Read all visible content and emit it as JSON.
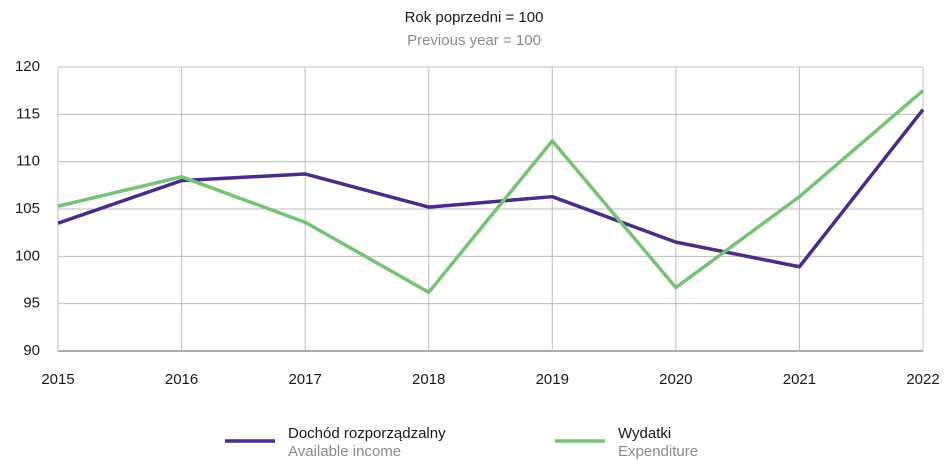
{
  "chart_data": {
    "type": "line",
    "title": "Rok poprzedni = 100",
    "subtitle": "Previous year = 100",
    "x": [
      2015,
      2016,
      2017,
      2018,
      2019,
      2020,
      2021,
      2022
    ],
    "xlim": [
      2015,
      2022
    ],
    "xticks": [
      2015,
      2016,
      2017,
      2018,
      2019,
      2020,
      2021,
      2022
    ],
    "ylim": [
      90,
      120
    ],
    "yticks": [
      90,
      95,
      100,
      105,
      110,
      115,
      120
    ],
    "grid": true,
    "legend": "bottom",
    "series": [
      {
        "name": "Dochód rozporządzalny",
        "name_en": "Available income",
        "color": "#4b2b8c",
        "values": [
          103.5,
          108.0,
          108.7,
          105.2,
          106.3,
          101.5,
          98.9,
          115.5
        ]
      },
      {
        "name": "Wydatki",
        "name_en": "Expenditure",
        "color": "#72c66f",
        "values": [
          105.3,
          108.4,
          103.6,
          96.2,
          112.2,
          96.7,
          106.3,
          117.5
        ]
      }
    ]
  }
}
